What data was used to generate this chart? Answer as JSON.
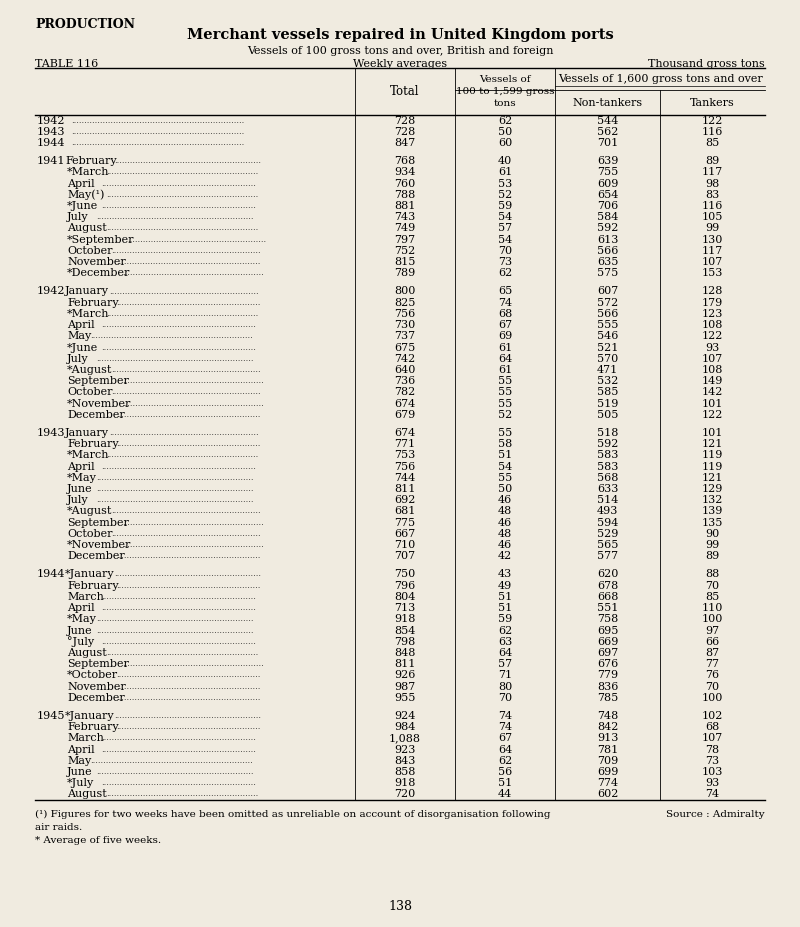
{
  "page_label": "PRODUCTION",
  "title": "Merchant vessels repaired in United Kingdom ports",
  "subtitle": "Vessels of 100 gross tons and over, British and foreign",
  "table_label": "TABLE 116",
  "weekly_label": "Weekly averages",
  "units_label": "Thousand gross tons",
  "col_header_span": "Vessels of 1,600 gross tons and over",
  "rows": [
    [
      "1942",
      "",
      728,
      62,
      544,
      122
    ],
    [
      "1943",
      "",
      728,
      50,
      562,
      116
    ],
    [
      "1944",
      "",
      847,
      60,
      701,
      85
    ],
    [
      "1941",
      "February",
      768,
      40,
      639,
      89
    ],
    [
      "",
      "*March",
      934,
      61,
      755,
      117
    ],
    [
      "",
      "April",
      760,
      53,
      609,
      98
    ],
    [
      "",
      "May(¹)",
      788,
      52,
      654,
      83
    ],
    [
      "",
      "*June",
      881,
      59,
      706,
      116
    ],
    [
      "",
      "July",
      743,
      54,
      584,
      105
    ],
    [
      "",
      "August",
      749,
      57,
      592,
      99
    ],
    [
      "",
      "*September",
      797,
      54,
      613,
      130
    ],
    [
      "",
      "October",
      752,
      70,
      566,
      117
    ],
    [
      "",
      "November",
      815,
      73,
      635,
      107
    ],
    [
      "",
      "*December",
      789,
      62,
      575,
      153
    ],
    [
      "1942",
      "January",
      800,
      65,
      607,
      128
    ],
    [
      "",
      "February",
      825,
      74,
      572,
      179
    ],
    [
      "",
      "*March",
      756,
      68,
      566,
      123
    ],
    [
      "",
      "April",
      730,
      67,
      555,
      108
    ],
    [
      "",
      "May",
      737,
      69,
      546,
      122
    ],
    [
      "",
      "*June",
      675,
      61,
      521,
      93
    ],
    [
      "",
      "July",
      742,
      64,
      570,
      107
    ],
    [
      "",
      "*August",
      640,
      61,
      471,
      108
    ],
    [
      "",
      "September",
      736,
      55,
      532,
      149
    ],
    [
      "",
      "October",
      782,
      55,
      585,
      142
    ],
    [
      "",
      "*November",
      674,
      55,
      519,
      101
    ],
    [
      "",
      "December",
      679,
      52,
      505,
      122
    ],
    [
      "1943",
      "January",
      674,
      55,
      518,
      101
    ],
    [
      "",
      "February",
      771,
      58,
      592,
      121
    ],
    [
      "",
      "*March",
      753,
      51,
      583,
      119
    ],
    [
      "",
      "April",
      756,
      54,
      583,
      119
    ],
    [
      "",
      "*May",
      744,
      55,
      568,
      121
    ],
    [
      "",
      "June",
      811,
      50,
      633,
      129
    ],
    [
      "",
      "July",
      692,
      46,
      514,
      132
    ],
    [
      "",
      "*August",
      681,
      48,
      493,
      139
    ],
    [
      "",
      "September",
      775,
      46,
      594,
      135
    ],
    [
      "",
      "October",
      667,
      48,
      529,
      90
    ],
    [
      "",
      "*November",
      710,
      46,
      565,
      99
    ],
    [
      "",
      "December",
      707,
      42,
      577,
      89
    ],
    [
      "1944",
      "*January",
      750,
      43,
      620,
      88
    ],
    [
      "",
      "February",
      796,
      49,
      678,
      70
    ],
    [
      "",
      "March",
      804,
      51,
      668,
      85
    ],
    [
      "",
      "April",
      713,
      51,
      551,
      110
    ],
    [
      "",
      "*May",
      918,
      59,
      758,
      100
    ],
    [
      "",
      "June",
      854,
      62,
      695,
      97
    ],
    [
      "",
      "°July",
      798,
      63,
      669,
      66
    ],
    [
      "",
      "August",
      848,
      64,
      697,
      87
    ],
    [
      "",
      "September",
      811,
      57,
      676,
      77
    ],
    [
      "",
      "*October",
      926,
      71,
      779,
      76
    ],
    [
      "",
      "November",
      987,
      80,
      836,
      70
    ],
    [
      "",
      "December",
      955,
      70,
      785,
      100
    ],
    [
      "1945",
      "*January",
      924,
      74,
      748,
      102
    ],
    [
      "",
      "February",
      984,
      74,
      842,
      68
    ],
    [
      "",
      "March",
      1088,
      67,
      913,
      107
    ],
    [
      "",
      "April",
      923,
      64,
      781,
      78
    ],
    [
      "",
      "May",
      843,
      62,
      709,
      73
    ],
    [
      "",
      "June",
      858,
      56,
      699,
      103
    ],
    [
      "",
      "*July",
      918,
      51,
      774,
      93
    ],
    [
      "",
      "August",
      720,
      44,
      602,
      74
    ]
  ],
  "gap_after": [
    2,
    13,
    25,
    37,
    49
  ],
  "footnote1": "(¹) Figures for two weeks have been omitted as unreliable on account of disorganisation following",
  "footnote1b": "air raids.",
  "footnote2": "* Average of five weeks.",
  "source": "Source : Admiralty",
  "page_number": "138",
  "bg_color": "#f0ebe0"
}
